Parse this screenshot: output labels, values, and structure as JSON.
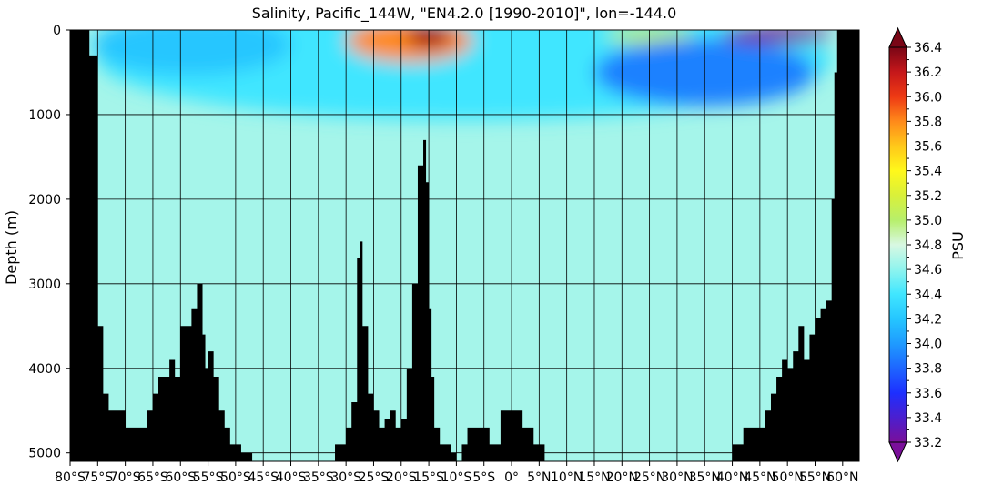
{
  "chart_data": {
    "type": "heatmap",
    "title": "Salinity, Pacific_144W, \"EN4.2.0 [1990-2010]\", lon=-144.0",
    "ylabel": "Depth (m)",
    "colorbar_label": "PSU",
    "x_range": [
      -80,
      63
    ],
    "y_range": [
      0,
      5100
    ],
    "y_inverted": true,
    "grid": true,
    "x_ticks": [
      {
        "value": -80,
        "label": "80°S"
      },
      {
        "value": -75,
        "label": "75°S"
      },
      {
        "value": -70,
        "label": "70°S"
      },
      {
        "value": -65,
        "label": "65°S"
      },
      {
        "value": -60,
        "label": "60°S"
      },
      {
        "value": -55,
        "label": "55°S"
      },
      {
        "value": -50,
        "label": "50°S"
      },
      {
        "value": -45,
        "label": "45°S"
      },
      {
        "value": -40,
        "label": "40°S"
      },
      {
        "value": -35,
        "label": "35°S"
      },
      {
        "value": -30,
        "label": "30°S"
      },
      {
        "value": -25,
        "label": "25°S"
      },
      {
        "value": -20,
        "label": "20°S"
      },
      {
        "value": -15,
        "label": "15°S"
      },
      {
        "value": -10,
        "label": "10°S"
      },
      {
        "value": -5,
        "label": "5°S"
      },
      {
        "value": 0,
        "label": "0°"
      },
      {
        "value": 5,
        "label": "5°N"
      },
      {
        "value": 10,
        "label": "10°N"
      },
      {
        "value": 15,
        "label": "15°N"
      },
      {
        "value": 20,
        "label": "20°N"
      },
      {
        "value": 25,
        "label": "25°N"
      },
      {
        "value": 30,
        "label": "30°N"
      },
      {
        "value": 35,
        "label": "35°N"
      },
      {
        "value": 40,
        "label": "40°N"
      },
      {
        "value": 45,
        "label": "45°N"
      },
      {
        "value": 50,
        "label": "50°N"
      },
      {
        "value": 55,
        "label": "55°N"
      },
      {
        "value": 60,
        "label": "60°N"
      }
    ],
    "y_ticks": [
      {
        "value": 0,
        "label": "0"
      },
      {
        "value": 1000,
        "label": "1000"
      },
      {
        "value": 2000,
        "label": "2000"
      },
      {
        "value": 3000,
        "label": "3000"
      },
      {
        "value": 4000,
        "label": "4000"
      },
      {
        "value": 5000,
        "label": "5000"
      }
    ],
    "colorbar": {
      "vmin": 33.2,
      "vmax": 36.4,
      "extend": "both",
      "tick_labels": [
        "33.2",
        "33.4",
        "33.6",
        "33.8",
        "34.0",
        "34.2",
        "34.4",
        "34.6",
        "34.8",
        "35.0",
        "35.2",
        "35.4",
        "35.6",
        "35.8",
        "36.0",
        "36.2",
        "36.4"
      ],
      "colormap": [
        [
          33.2,
          "#7a0f9a"
        ],
        [
          33.4,
          "#4b1fcf"
        ],
        [
          33.6,
          "#1d2fff"
        ],
        [
          33.8,
          "#1e66ff"
        ],
        [
          34.0,
          "#1f9bff"
        ],
        [
          34.2,
          "#25c6ff"
        ],
        [
          34.4,
          "#40e6ff"
        ],
        [
          34.6,
          "#8ff4ee"
        ],
        [
          34.8,
          "#d8f8e2"
        ],
        [
          35.0,
          "#b7ef6b"
        ],
        [
          35.2,
          "#d9f03a"
        ],
        [
          35.4,
          "#fff81b"
        ],
        [
          35.6,
          "#ffc81a"
        ],
        [
          35.8,
          "#ff8a1a"
        ],
        [
          36.0,
          "#ee3a14"
        ],
        [
          36.2,
          "#c5171a"
        ],
        [
          36.4,
          "#7a0616"
        ]
      ]
    },
    "salinity_fields": {
      "background": 34.66,
      "features": [
        {
          "name": "upper-layer",
          "lat": [
            -75,
            58
          ],
          "depth": [
            0,
            1000
          ],
          "value": 34.4
        },
        {
          "name": "south-thermocline",
          "lat": [
            -76,
            -40
          ],
          "depth": [
            0,
            500
          ],
          "value": 34.2
        },
        {
          "name": "south-subtropical-high",
          "lat": [
            -30,
            -7
          ],
          "depth": [
            0,
            350
          ],
          "value": 35.8
        },
        {
          "name": "south-subtropical-core",
          "lat": [
            -19,
            -11
          ],
          "depth": [
            0,
            200
          ],
          "value": 36.3
        },
        {
          "name": "north-subtropical-high",
          "lat": [
            17,
            33
          ],
          "depth": [
            0,
            150
          ],
          "value": 35.0
        },
        {
          "name": "north-intermediate-low",
          "lat": [
            15,
            55
          ],
          "depth": [
            100,
            900
          ],
          "value": 33.9
        },
        {
          "name": "subarctic-surface-low",
          "lat": [
            38,
            58
          ],
          "depth": [
            0,
            150
          ],
          "value": 33.2
        }
      ]
    },
    "bathymetry": {
      "lat": [
        -80,
        -77,
        -76.5,
        -75,
        -74,
        -73,
        -72,
        -71,
        -70,
        -68,
        -66,
        -65,
        -64,
        -63,
        -62,
        -61,
        -60,
        -59,
        -58,
        -57,
        -56,
        -55.5,
        -55,
        -54,
        -53,
        -52,
        -51,
        -50,
        -49,
        -47,
        -45,
        -40,
        -35,
        -32,
        -30,
        -29,
        -28,
        -27.5,
        -27,
        -26,
        -25,
        -24,
        -23,
        -22,
        -21,
        -20,
        -19,
        -18,
        -17,
        -16,
        -15.5,
        -15,
        -14.5,
        -14,
        -13,
        -12,
        -11,
        -10,
        -9,
        -8,
        -6,
        -4,
        -2,
        0,
        2,
        4,
        6,
        8,
        10,
        20,
        25,
        28,
        30,
        32,
        35,
        40,
        42,
        44,
        46,
        47,
        48,
        49,
        50,
        51,
        52,
        53,
        54,
        55,
        56,
        57,
        58,
        58.5,
        59,
        60,
        61,
        62,
        63
      ],
      "depth": [
        0,
        0,
        300,
        3500,
        4300,
        4500,
        4500,
        4500,
        4700,
        4700,
        4500,
        4300,
        4100,
        4100,
        3900,
        4100,
        3500,
        3500,
        3300,
        3000,
        3600,
        4000,
        3800,
        4100,
        4500,
        4700,
        4900,
        4900,
        5000,
        5100,
        5100,
        5100,
        5100,
        4900,
        4700,
        4400,
        2700,
        2500,
        3500,
        4300,
        4500,
        4700,
        4600,
        4500,
        4700,
        4600,
        4000,
        3000,
        1600,
        1300,
        1800,
        3300,
        4100,
        4700,
        4900,
        4900,
        5000,
        5100,
        4900,
        4700,
        4700,
        4900,
        4500,
        4500,
        4700,
        4900,
        5100,
        5100,
        5100,
        5100,
        5100,
        5100,
        5100,
        5100,
        5100,
        4900,
        4700,
        4700,
        4500,
        4300,
        4100,
        3900,
        4000,
        3800,
        3500,
        3900,
        3600,
        3400,
        3300,
        3200,
        2000,
        500,
        0,
        0,
        0,
        0,
        0
      ]
    }
  }
}
